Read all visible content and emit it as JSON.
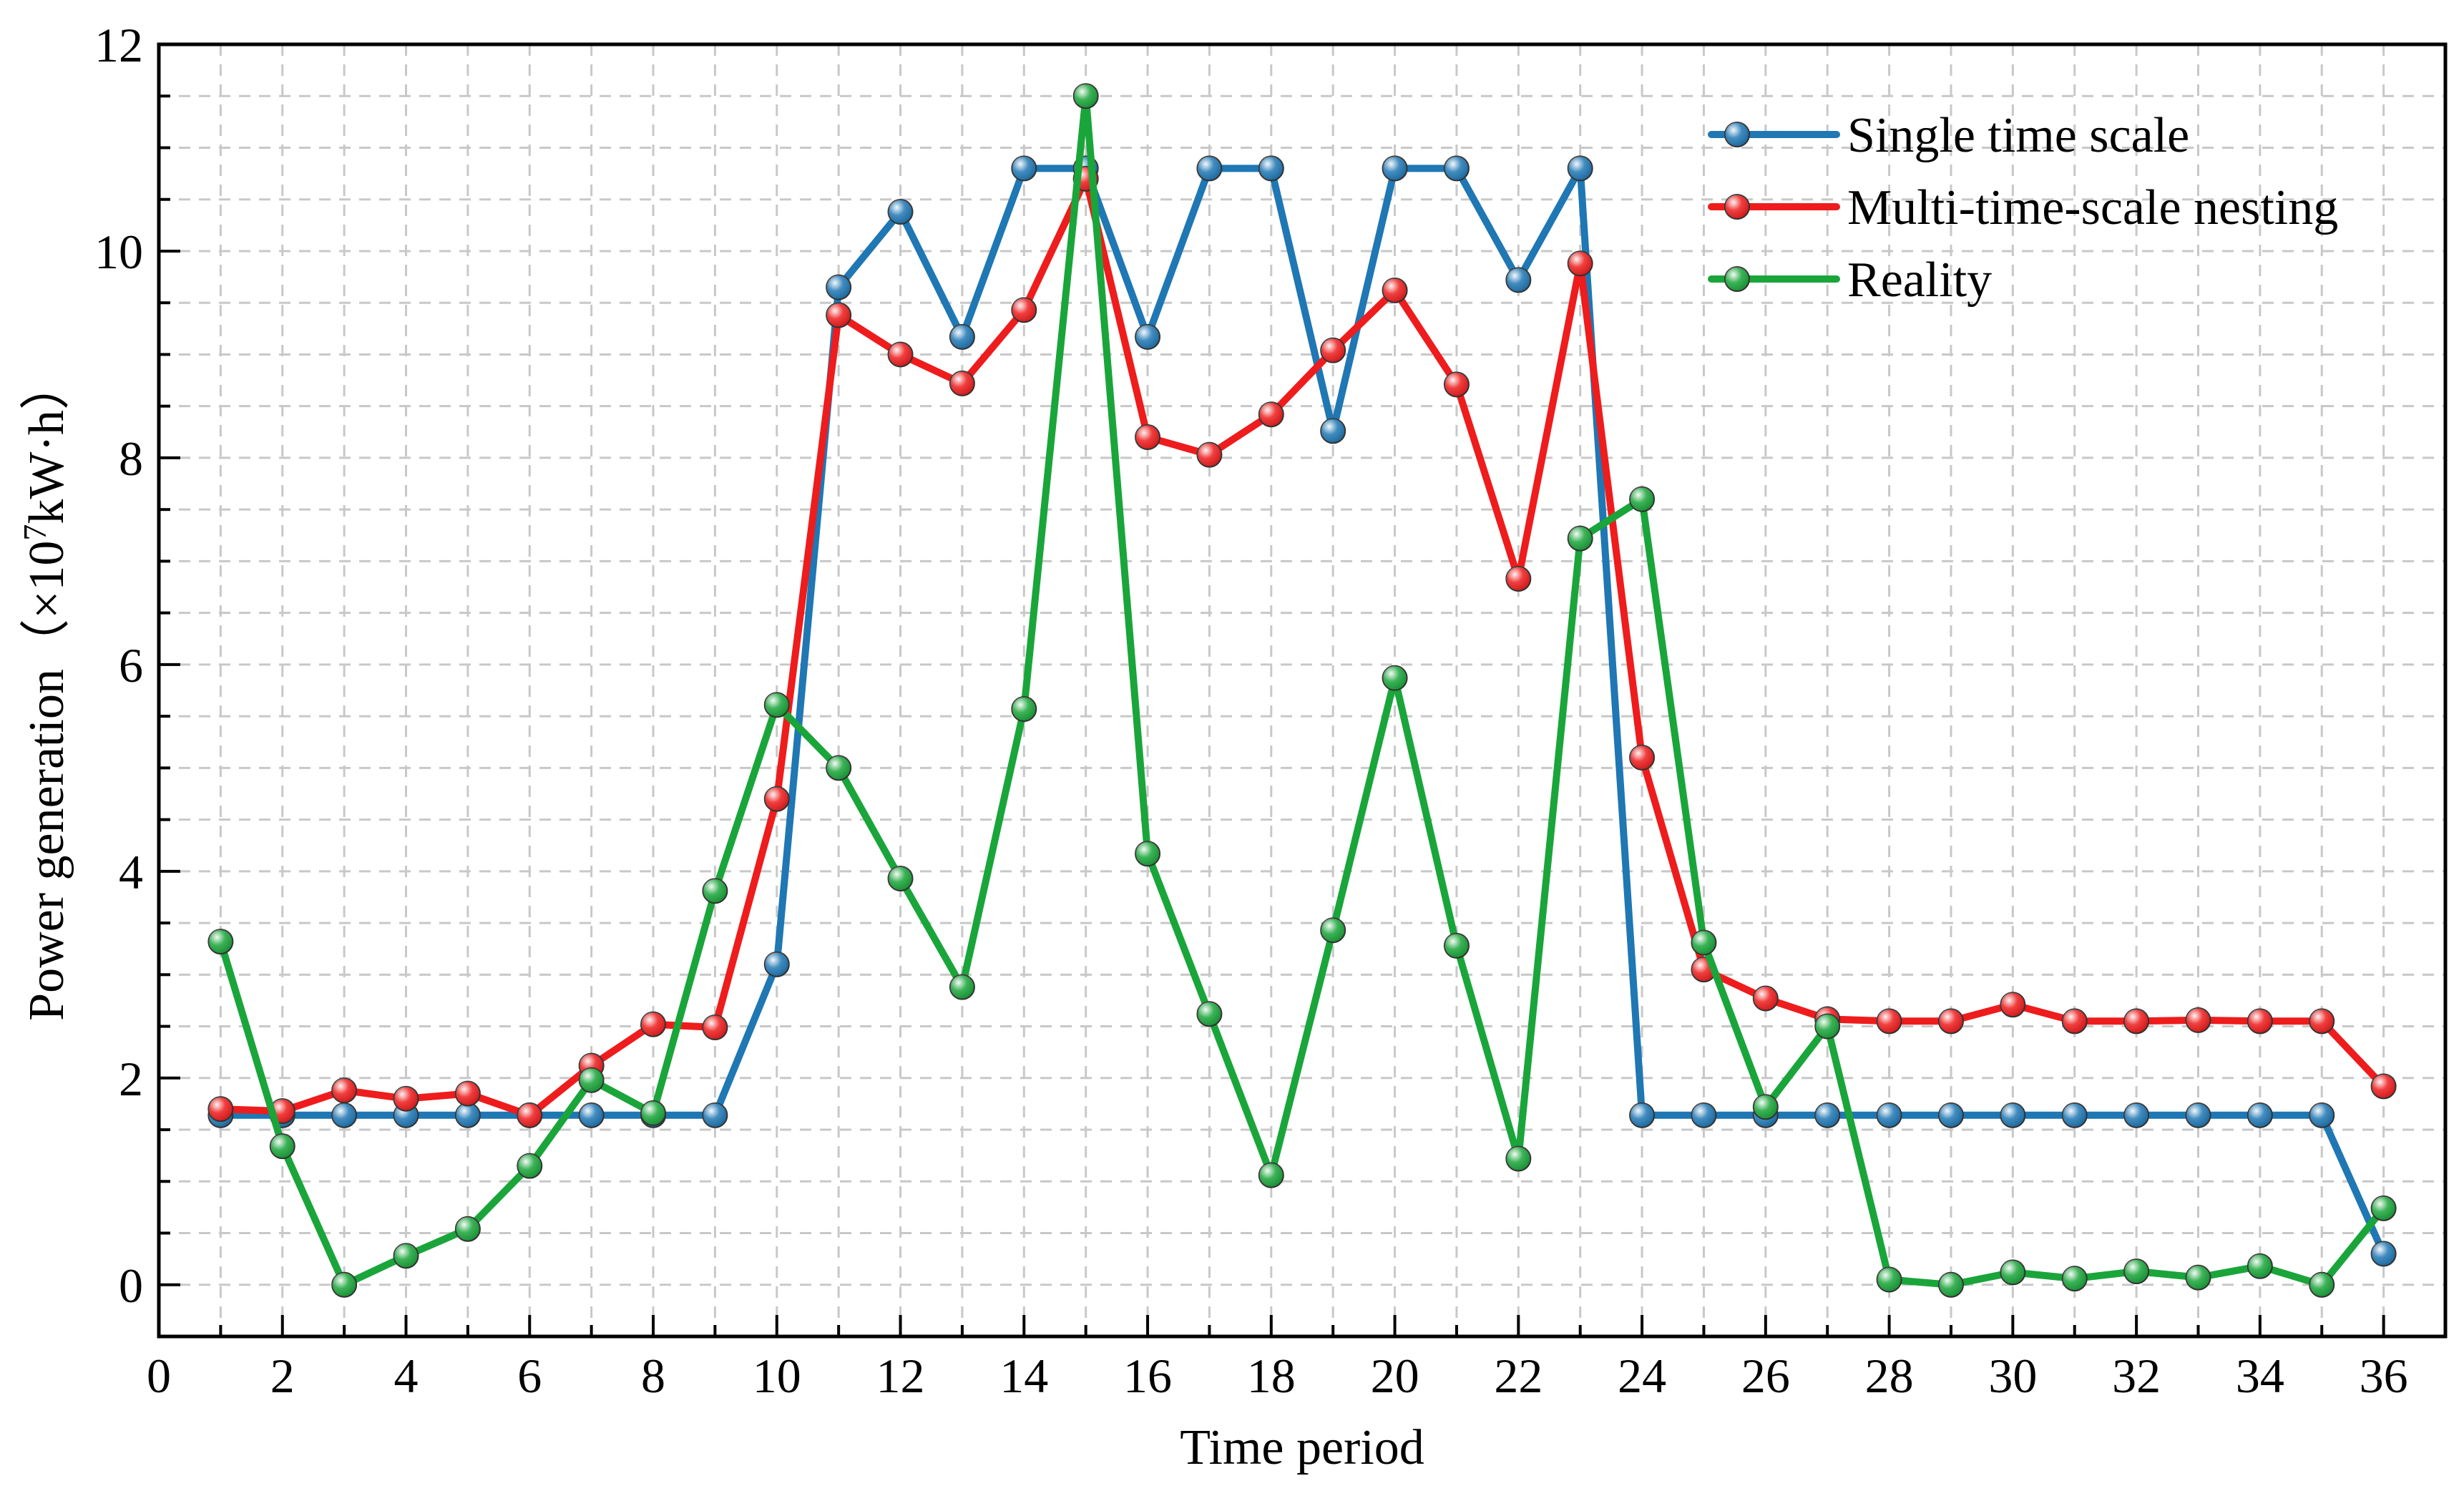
{
  "chart_data": {
    "type": "line",
    "title": "",
    "xlabel": "Time period",
    "ylabel": "Power generation（×10^7kW·h）",
    "ylabel_main": "Power generation（×10",
    "ylabel_exp": "7",
    "ylabel_unit": "kW·h）",
    "xlim": [
      0,
      37
    ],
    "ylim": [
      -0.5,
      12
    ],
    "xticks": [
      0,
      2,
      4,
      6,
      8,
      10,
      12,
      14,
      16,
      18,
      20,
      22,
      24,
      26,
      28,
      30,
      32,
      34,
      36
    ],
    "yticks": [
      0,
      2,
      4,
      6,
      8,
      10,
      12
    ],
    "grid": true,
    "legend_position": "top-right",
    "x": [
      1,
      2,
      3,
      4,
      5,
      6,
      7,
      8,
      9,
      10,
      11,
      12,
      13,
      14,
      15,
      16,
      17,
      18,
      19,
      20,
      21,
      22,
      23,
      24,
      25,
      26,
      27,
      28,
      29,
      30,
      31,
      32,
      33,
      34,
      35,
      36
    ],
    "series": [
      {
        "name": "Single time scale",
        "color": "#1f77b4",
        "values": [
          1.64,
          1.64,
          1.64,
          1.64,
          1.64,
          1.64,
          1.64,
          1.64,
          1.64,
          3.1,
          9.65,
          10.38,
          9.17,
          10.8,
          10.8,
          9.17,
          10.8,
          10.8,
          8.26,
          10.8,
          10.8,
          9.72,
          10.8,
          1.64,
          1.64,
          1.64,
          1.64,
          1.64,
          1.64,
          1.64,
          1.64,
          1.64,
          1.64,
          1.64,
          1.64,
          0.3
        ]
      },
      {
        "name": "Multi-time-scale nesting",
        "color": "#ee1c1c",
        "values": [
          1.7,
          1.68,
          1.88,
          1.8,
          1.85,
          1.64,
          2.12,
          2.52,
          2.49,
          4.7,
          9.38,
          9.0,
          8.72,
          9.43,
          10.7,
          8.2,
          8.03,
          8.42,
          9.04,
          9.62,
          8.71,
          6.83,
          9.88,
          5.1,
          3.05,
          2.77,
          2.57,
          2.55,
          2.55,
          2.71,
          2.55,
          2.55,
          2.56,
          2.55,
          2.55,
          1.92
        ]
      },
      {
        "name": "Reality",
        "color": "#1aa53a",
        "values": [
          3.32,
          1.34,
          0.0,
          0.28,
          0.54,
          1.15,
          1.98,
          1.66,
          3.81,
          5.61,
          5.0,
          3.93,
          2.88,
          5.57,
          11.5,
          4.17,
          2.62,
          1.06,
          3.43,
          5.87,
          3.28,
          1.22,
          7.22,
          7.6,
          3.31,
          1.72,
          2.5,
          0.05,
          0.0,
          0.12,
          0.06,
          0.13,
          0.07,
          0.18,
          0.0,
          0.74
        ]
      }
    ]
  }
}
